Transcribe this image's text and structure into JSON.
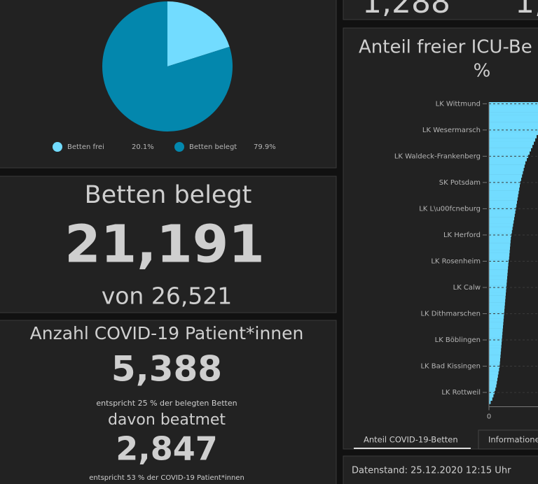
{
  "top_partial": {
    "values": [
      "1,288",
      "1,"
    ]
  },
  "beds_panel": {
    "title": "Betten belegt",
    "value": "21,191",
    "subtitle": "von 26,521"
  },
  "covid_panel": {
    "title": "Anzahl COVID-19 Patient*innen",
    "value": "5,388",
    "note": "entspricht 25 % der belegten Betten",
    "subtitle": "davon beatmet",
    "value2": "2,847",
    "note2": "entspricht 53 % der COVID-19 Patient*innen"
  },
  "tabs": [
    "Anteil COVID-19-Betten",
    "Informatione"
  ],
  "footer": "Datenstand: 25.12.2020 12:15 Uhr",
  "chart_data": [
    {
      "type": "pie",
      "categories": [
        "Betten frei",
        "Betten belegt"
      ],
      "values": [
        20.1,
        79.9
      ],
      "value_labels": [
        "20.1%",
        "79.9%"
      ],
      "colors": [
        "#72dcff",
        "#0387ad"
      ]
    },
    {
      "type": "hbar",
      "title_lines": [
        "Anteil freier ICU-Be",
        "%"
      ],
      "color": "#72dcff",
      "categories": [
        "LK Wittmund",
        null,
        null,
        null,
        null,
        null,
        null,
        null,
        "LK Wesermarsch",
        null,
        null,
        null,
        null,
        null,
        null,
        null,
        "LK Waldeck-Frankenberg",
        null,
        null,
        null,
        null,
        null,
        null,
        null,
        "SK Potsdam",
        null,
        null,
        null,
        null,
        null,
        null,
        null,
        "LK L\\u00fcneburg",
        null,
        null,
        null,
        null,
        null,
        null,
        null,
        "LK Herford",
        null,
        null,
        null,
        null,
        null,
        null,
        null,
        "LK Rosenheim",
        null,
        null,
        null,
        null,
        null,
        null,
        null,
        "LK Calw",
        null,
        null,
        null,
        null,
        null,
        null,
        null,
        "LK Dithmarschen",
        null,
        null,
        null,
        null,
        null,
        null,
        null,
        "LK Böblingen",
        null,
        null,
        null,
        null,
        null,
        null,
        null,
        "LK Bad Kissingen",
        null,
        null,
        null,
        null,
        null,
        null,
        null,
        "LK Rottweil",
        null,
        null,
        null
      ],
      "values": [
        60,
        40,
        32,
        27,
        24,
        22,
        20.5,
        19,
        18,
        17.5,
        17,
        16.5,
        16,
        15.5,
        15,
        14.5,
        14,
        13.5,
        13,
        12.7,
        12.4,
        12.1,
        11.8,
        11.5,
        11.2,
        11,
        10.8,
        10.6,
        10.4,
        10.2,
        10,
        9.8,
        9.6,
        9.4,
        9.2,
        9,
        8.8,
        8.6,
        8.4,
        8.2,
        8,
        7.8,
        7.7,
        7.6,
        7.5,
        7.4,
        7.3,
        7.2,
        7,
        6.9,
        6.8,
        6.7,
        6.6,
        6.5,
        6.4,
        6.3,
        6.2,
        6.1,
        6,
        5.9,
        5.8,
        5.7,
        5.6,
        5.5,
        5.4,
        5.3,
        5.2,
        5.1,
        5,
        4.9,
        4.8,
        4.7,
        4.6,
        4.5,
        4.4,
        4.3,
        4.2,
        4.1,
        4,
        3.9,
        3.8,
        3.6,
        3.4,
        3.2,
        3,
        2.8,
        2.6,
        2.3,
        2,
        1.6,
        1.2,
        0.6
      ],
      "xlim": [
        0,
        100
      ],
      "xticks": [
        0
      ]
    }
  ]
}
